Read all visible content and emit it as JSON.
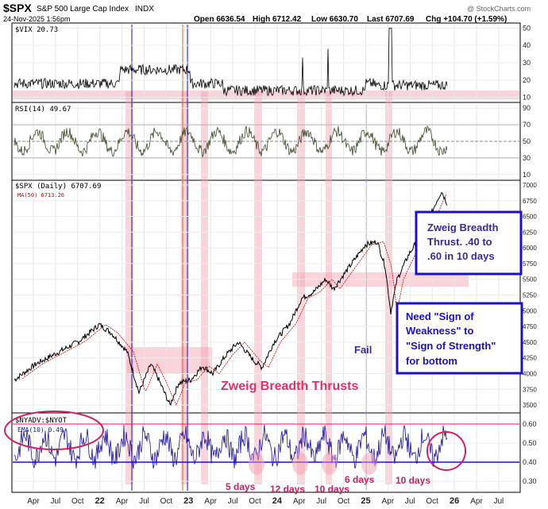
{
  "header": {
    "symbol": "$SPX",
    "name": "S&P 500 Large Cap Index",
    "exchange": "INDX",
    "date": "24-Nov-2025 1:56pm",
    "open": "Open 6636.54",
    "high": "High 6712.42",
    "low": "Low 6630.70",
    "last": "Last 6707.69",
    "chg": "Chg +104.70 (+1.59%)",
    "watermark": "@ StockCharts.com"
  },
  "panels": {
    "vix": {
      "label": "$VIX 20.73"
    },
    "rsi": {
      "label": "RSI(14) 49.67"
    },
    "spx": {
      "label": "$SPX (Daily) 6707.69",
      "ma_label": "MA(50) 6713.26"
    },
    "nyad": {
      "label": "$NYADV:$NYOT",
      "ema_label": "EMA(10) 0.49"
    }
  },
  "annotations": {
    "box1": [
      "Zweig Breadth",
      "Thrust. .40 to",
      ".60 in 10 days"
    ],
    "box2": [
      "Need \"Sign of",
      "Weakness\" to",
      "\"Sign of Strength\"",
      "for bottom"
    ],
    "fail": "Fail",
    "zweig_title": "Zweig Breadth Thrusts",
    "days": [
      "5 days",
      "12 days",
      "10 days",
      "6 days",
      "10 days"
    ]
  },
  "x_labels": [
    "Apr",
    "Jul",
    "Oct",
    "22",
    "Apr",
    "Jul",
    "Oct",
    "23",
    "Apr",
    "Jul",
    "Oct",
    "24",
    "Apr",
    "Jul",
    "Oct",
    "25",
    "Apr",
    "Jul",
    "Oct",
    "26",
    "Apr",
    "Jul"
  ],
  "colors": {
    "accent": "#d2205a",
    "box": "#1a10c8",
    "price": "#000000",
    "ma": "#cc0000",
    "nyad": "#1a10a0",
    "rsi": "#3a4a2a",
    "shade": "#f4a0b0"
  },
  "chart_data": [
    {
      "type": "line",
      "title": "$VIX",
      "y_ticks": [
        10,
        20,
        30,
        40,
        50
      ],
      "ylim": [
        8,
        52
      ],
      "x": [
        "Apr 21",
        "Oct 21",
        "Apr 22",
        "Oct 22",
        "Apr 23",
        "Oct 23",
        "Apr 24",
        "Oct 24",
        "Apr 25",
        "Oct 25"
      ],
      "values": [
        17,
        20,
        30,
        30,
        18,
        16,
        14,
        18,
        50,
        18
      ],
      "current": 20.73
    },
    {
      "type": "line",
      "title": "RSI(14)",
      "y_ticks": [
        10,
        30,
        50,
        70,
        90
      ],
      "ylim": [
        5,
        95
      ],
      "reference_lines": [
        30,
        50,
        70
      ],
      "current": 49.67
    },
    {
      "type": "line",
      "title": "$SPX (Daily)",
      "y_ticks": [
        3500,
        3750,
        4000,
        4250,
        4500,
        4750,
        5000,
        5250,
        5500,
        5750,
        6000,
        6250,
        6500,
        6750,
        7000
      ],
      "ylim": [
        3400,
        7050
      ],
      "series": [
        {
          "name": "$SPX (Daily)",
          "x": [
            "Mar 21",
            "Jul 21",
            "Oct 21",
            "Jan 22",
            "Mar 22",
            "Jun 22",
            "Aug 22",
            "Oct 22",
            "Dec 22",
            "Feb 23",
            "May 23",
            "Jul 23",
            "Oct 23",
            "Dec 23",
            "Mar 24",
            "Jul 24",
            "Aug 24",
            "Dec 24",
            "Feb 25",
            "Apr 25",
            "Jun 25",
            "Aug 25",
            "Oct 25",
            "Nov 25"
          ],
          "values": [
            3900,
            4350,
            4550,
            4780,
            4400,
            3700,
            4300,
            3580,
            3850,
            4150,
            4100,
            4580,
            4100,
            4780,
            5250,
            5650,
            5200,
            6050,
            6100,
            4980,
            6000,
            6400,
            6800,
            6707.69
          ]
        },
        {
          "name": "MA(50)",
          "current": 6713.26
        }
      ]
    },
    {
      "type": "line",
      "title": "$NYADV:$NYOT",
      "y_ticks": [
        0.3,
        0.4,
        0.5,
        0.6
      ],
      "ylim": [
        0.25,
        0.65
      ],
      "reference_lines": [
        0.4,
        0.6
      ],
      "series": [
        {
          "name": "EMA(10)",
          "current": 0.49
        }
      ]
    }
  ]
}
